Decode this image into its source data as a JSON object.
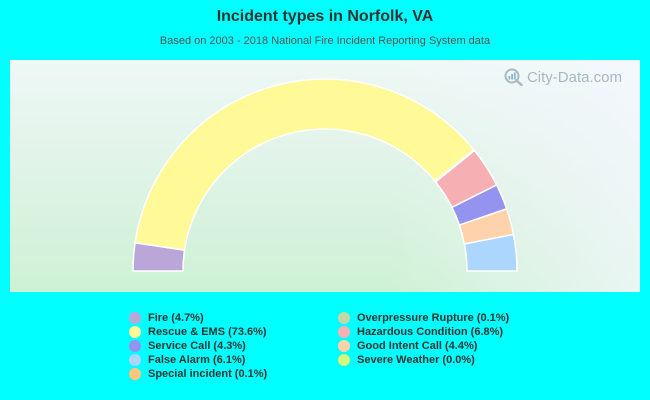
{
  "header": {
    "title": "Incident types in Norfolk, VA",
    "subtitle": "Based on 2003 - 2018 National Fire Incident Reporting System data"
  },
  "watermark": {
    "text": "City-Data.com",
    "icon": "magnifier-chart-icon"
  },
  "colors": {
    "page_background": "#00ffff",
    "title": "#333333",
    "subtitle": "#555555"
  },
  "legend": {
    "left": [
      {
        "label": "Fire (4.7%)",
        "color": "#bba6da"
      },
      {
        "label": "Rescue & EMS (73.6%)",
        "color": "#fff998"
      },
      {
        "label": "Service Call (4.3%)",
        "color": "#9493f0"
      },
      {
        "label": "False Alarm (6.1%)",
        "color": "#acd6fe"
      },
      {
        "label": "Special incident (0.1%)",
        "color": "#fec67c"
      }
    ],
    "right": [
      {
        "label": "Overpressure Rupture (0.1%)",
        "color": "#c4d7a6"
      },
      {
        "label": "Hazardous Condition (6.8%)",
        "color": "#f6b0b3"
      },
      {
        "label": "Good Intent Call (4.4%)",
        "color": "#fed3ac"
      },
      {
        "label": "Severe Weather (0.0%)",
        "color": "#d2f77c"
      }
    ]
  },
  "chart_data": {
    "type": "pie",
    "variant": "half-donut",
    "title": "Incident types in Norfolk, VA",
    "subtitle": "Based on 2003 - 2018 National Fire Incident Reporting System data",
    "legend_position": "bottom",
    "slices_in_draw_order": [
      {
        "name": "Fire",
        "value": 4.7,
        "color": "#bba6da"
      },
      {
        "name": "Rescue & EMS",
        "value": 73.6,
        "color": "#fff998"
      },
      {
        "name": "Special incident",
        "value": 0.1,
        "color": "#fec67c"
      },
      {
        "name": "Overpressure Rupture",
        "value": 0.1,
        "color": "#c4d7a6"
      },
      {
        "name": "Hazardous Condition",
        "value": 6.8,
        "color": "#f6b0b3"
      },
      {
        "name": "Service Call",
        "value": 4.3,
        "color": "#9493f0"
      },
      {
        "name": "Good Intent Call",
        "value": 4.4,
        "color": "#fed3ac"
      },
      {
        "name": "Severe Weather",
        "value": 0.0,
        "color": "#d2f77c"
      },
      {
        "name": "False Alarm",
        "value": 6.1,
        "color": "#acd6fe"
      }
    ],
    "units": "%"
  }
}
